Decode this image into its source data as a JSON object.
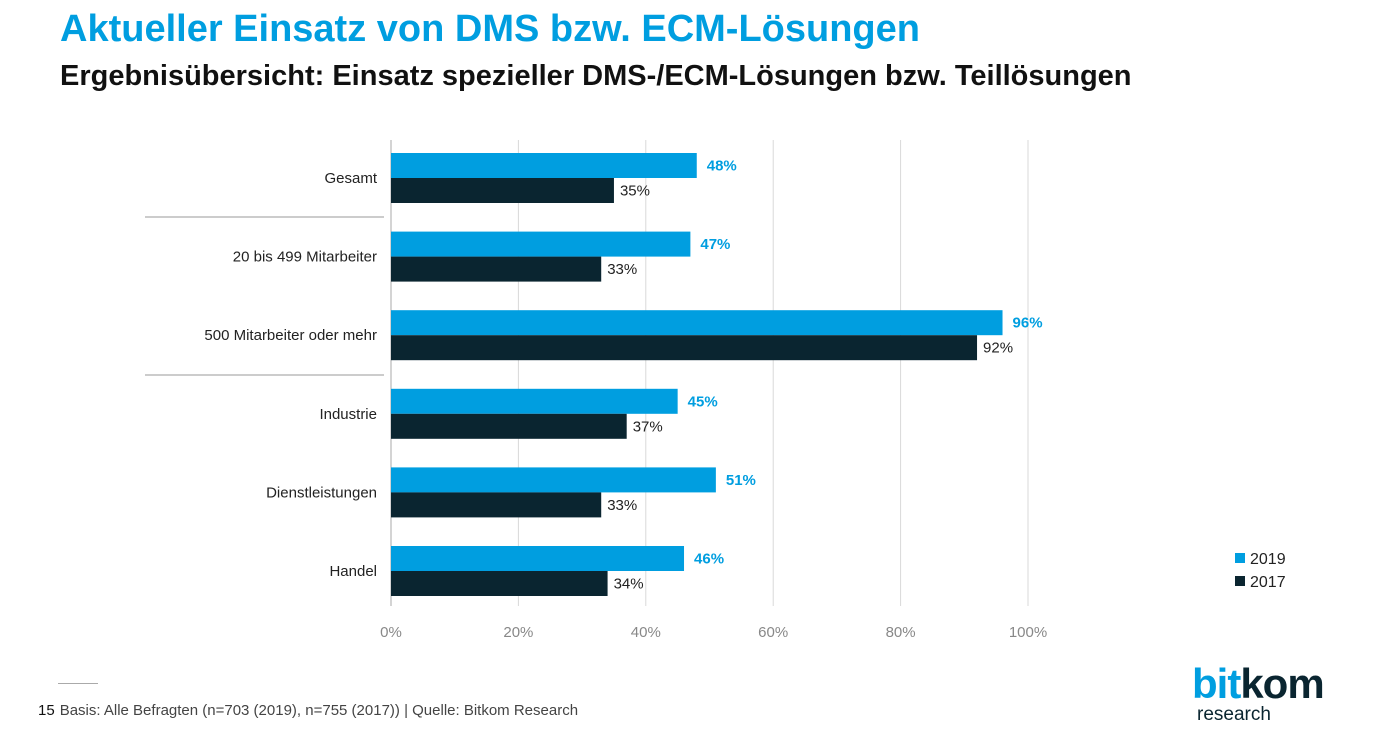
{
  "header": {
    "title": "Aktueller Einsatz von DMS bzw. ECM-Lösungen",
    "subtitle": "Ergebnisübersicht: Einsatz spezieller DMS-/ECM-Lösungen bzw. Teillösungen"
  },
  "chart_data": {
    "type": "bar",
    "orientation": "horizontal",
    "categories": [
      "Gesamt",
      "20 bis 499 Mitarbeiter",
      "500 Mitarbeiter oder mehr",
      "Industrie",
      "Dienstleistungen",
      "Handel"
    ],
    "series": [
      {
        "name": "2019",
        "values": [
          48,
          47,
          96,
          45,
          51,
          46
        ],
        "labels": [
          "48%",
          "47%",
          "96%",
          "45%",
          "51%",
          "46%"
        ],
        "color": "#009ee0"
      },
      {
        "name": "2017",
        "values": [
          35,
          33,
          92,
          37,
          33,
          34
        ],
        "labels": [
          "35%",
          "33%",
          "92%",
          "37%",
          "33%",
          "34%"
        ],
        "color": "#0a2530"
      }
    ],
    "xlim": [
      0,
      100
    ],
    "xticks": [
      "0%",
      "20%",
      "40%",
      "60%",
      "80%",
      "100%"
    ],
    "grid": true,
    "legend": "bottom-right"
  },
  "footer": {
    "page": "15",
    "text": "Basis: Alle Befragten (n=703 (2019), n=755 (2017)) | Quelle: Bitkom Research"
  },
  "logo": {
    "part1": "bit",
    "part2": "kom",
    "sub": "research"
  }
}
